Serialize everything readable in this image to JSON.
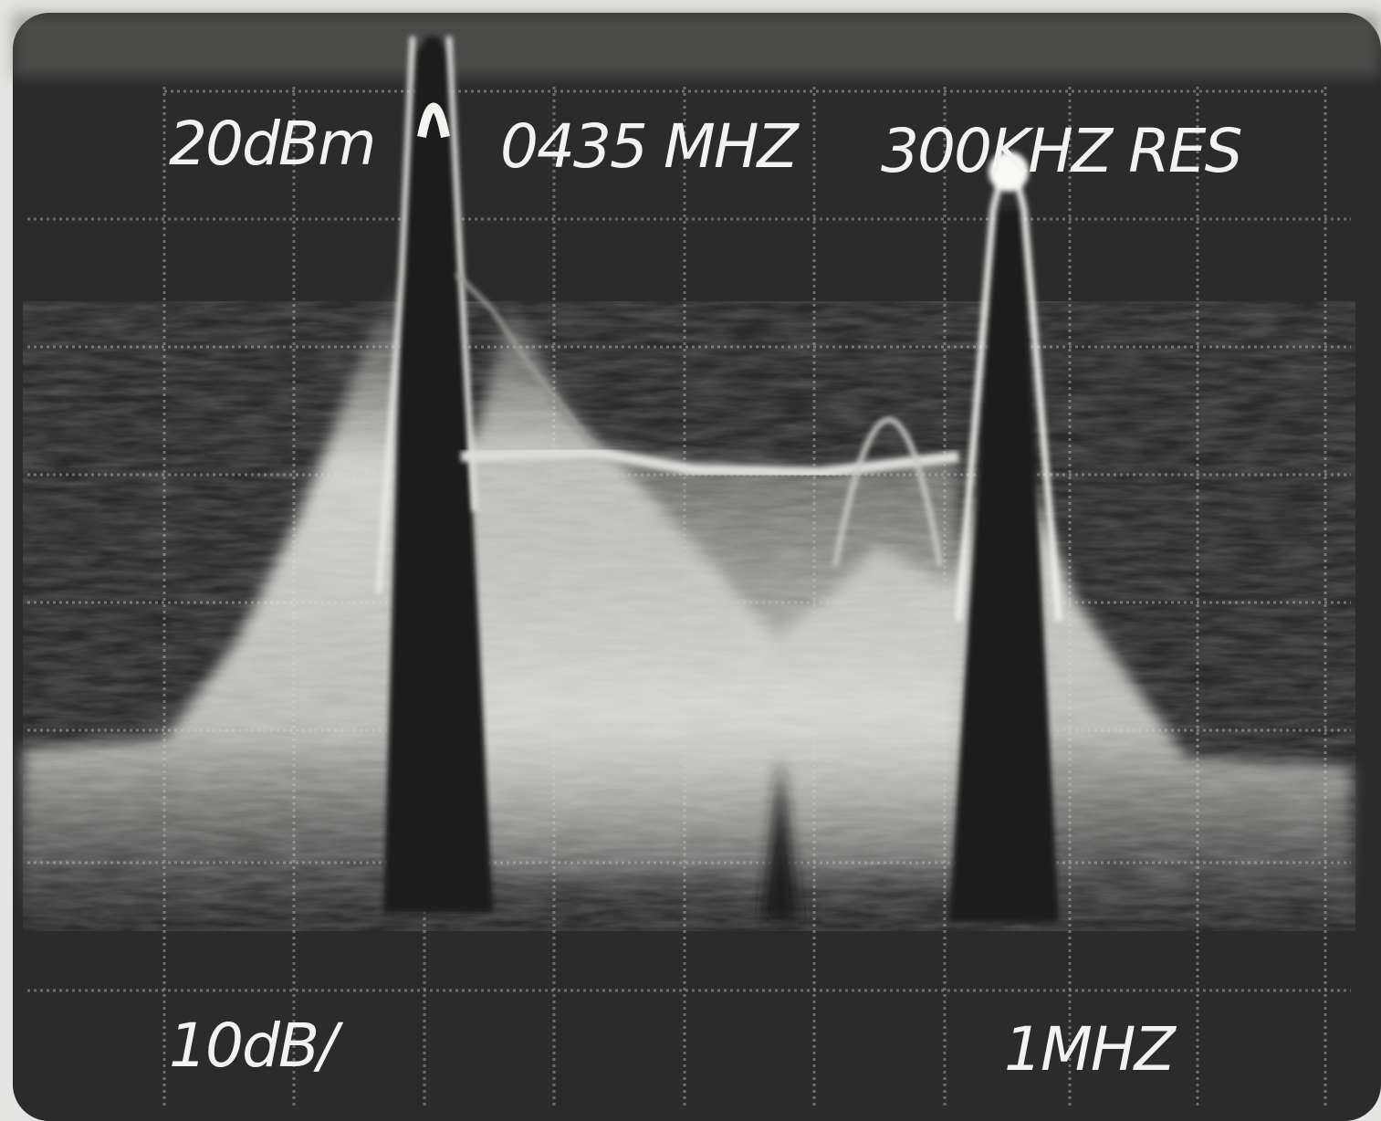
{
  "screen": {
    "reference_level": "20dBm",
    "center_frequency": "0435 MHZ",
    "resolution": "300KHZ RES",
    "vertical_scale": "10dB/",
    "horizontal_scale": "1MHZ"
  }
}
